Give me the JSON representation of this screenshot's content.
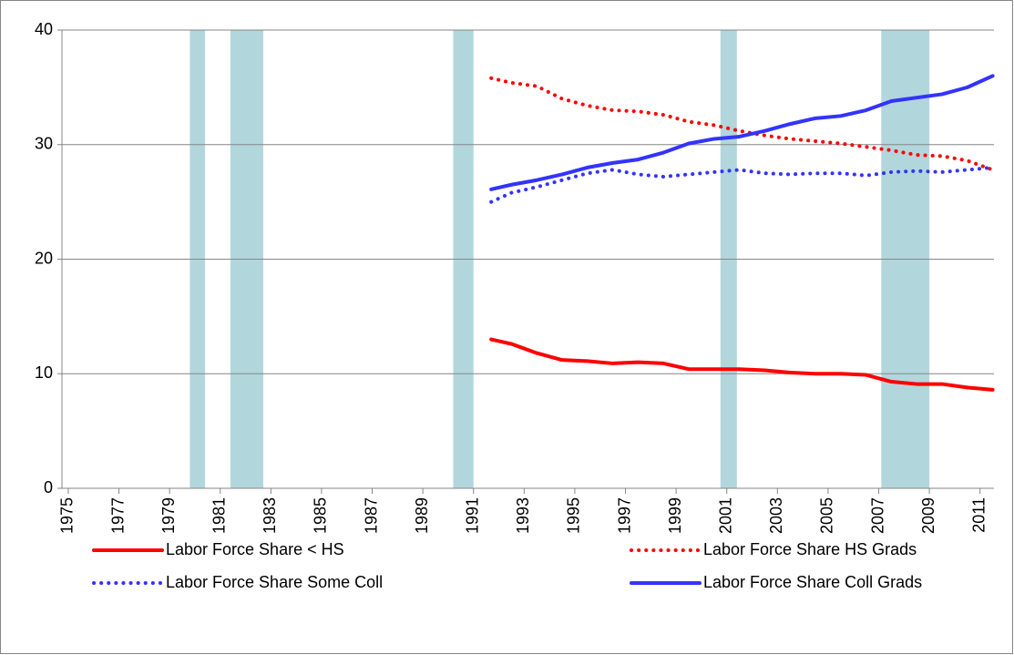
{
  "chart_data": {
    "type": "line",
    "x": [
      1991.7,
      1992.5,
      1993.5,
      1994.5,
      1995.5,
      1996.5,
      1997.5,
      1998.5,
      1999.5,
      2000.5,
      2001.5,
      2002.5,
      2003.5,
      2004.5,
      2005.5,
      2006.5,
      2007.5,
      2008.5,
      2009.5,
      2010.5,
      2011.5
    ],
    "series": [
      {
        "name": "Labor Force Share < HS",
        "color": "#ff0000",
        "dash": "solid",
        "values": [
          13.0,
          12.6,
          11.8,
          11.2,
          11.1,
          10.9,
          11.0,
          10.9,
          10.4,
          10.4,
          10.4,
          10.3,
          10.1,
          10.0,
          10.0,
          9.9,
          9.3,
          9.1,
          9.1,
          8.8,
          8.6
        ]
      },
      {
        "name": "Labor Force Share HS Grads",
        "color": "#ff0000",
        "dash": "dotted",
        "values": [
          35.8,
          35.4,
          35.1,
          34.0,
          33.4,
          33.0,
          32.9,
          32.6,
          32.0,
          31.7,
          31.2,
          30.8,
          30.5,
          30.3,
          30.1,
          29.8,
          29.5,
          29.1,
          29.0,
          28.6,
          27.8
        ]
      },
      {
        "name": "Labor Force Share Some Coll",
        "color": "#3333ff",
        "dash": "dotted",
        "values": [
          25.0,
          25.8,
          26.3,
          26.9,
          27.5,
          27.8,
          27.4,
          27.2,
          27.4,
          27.6,
          27.8,
          27.5,
          27.4,
          27.5,
          27.5,
          27.3,
          27.6,
          27.7,
          27.6,
          27.8,
          28.0
        ]
      },
      {
        "name": "Labor Force Share Coll Grads",
        "color": "#3333ff",
        "dash": "solid",
        "values": [
          26.1,
          26.5,
          26.9,
          27.4,
          28.0,
          28.4,
          28.7,
          29.3,
          30.1,
          30.5,
          30.7,
          31.2,
          31.8,
          32.3,
          32.5,
          33.0,
          33.8,
          34.1,
          34.4,
          35.0,
          36.0
        ]
      }
    ],
    "recessions": [
      [
        1979.8,
        1980.4
      ],
      [
        1981.4,
        1982.7
      ],
      [
        1990.2,
        1991.0
      ],
      [
        2000.75,
        2001.4
      ],
      [
        2007.1,
        2009.0
      ]
    ],
    "recession_color": "#a3d0d6",
    "xlim": [
      1974.75,
      2011.55
    ],
    "xticks": [
      1975,
      1977,
      1979,
      1981,
      1983,
      1985,
      1987,
      1989,
      1991,
      1993,
      1995,
      1997,
      1999,
      2001,
      2003,
      2005,
      2007,
      2009,
      2011
    ],
    "ylim": [
      0,
      40
    ],
    "yticks": [
      0,
      10,
      20,
      30,
      40
    ],
    "grid": true,
    "legend": "bottom"
  }
}
